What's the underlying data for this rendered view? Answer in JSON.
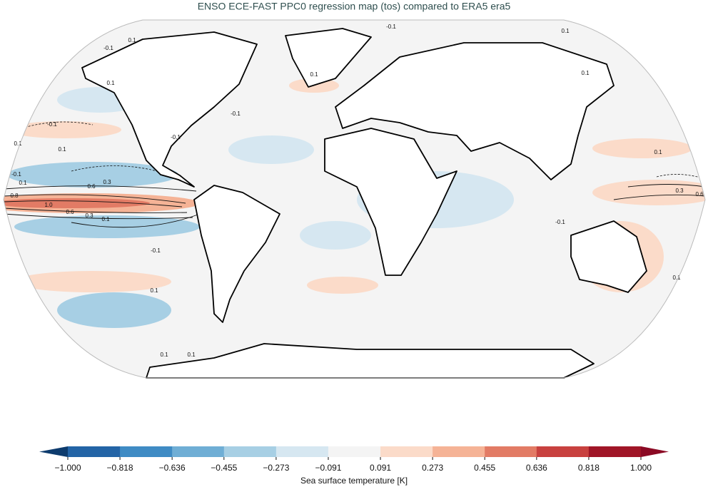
{
  "title": "ENSO ECE-FAST PPC0 regression map (tos) compared to ERA5 era5",
  "contour_labels": [
    "0.1",
    "-0.1",
    "0.1",
    "0.1",
    "-0.1",
    "0.1",
    "0.6",
    "0.3",
    "0.8",
    "1.0",
    "0.6",
    "0.3",
    "0.1",
    "-0.1",
    "0.1",
    "0.1",
    "0.1",
    "-0.1",
    "0.1",
    "-0.1",
    "0.1",
    "0.3",
    "0.6",
    "-0.1",
    "0.1",
    "-0.1",
    "0.1",
    "0.1",
    "-0.1",
    "0.1"
  ],
  "colorbar": {
    "label": "Sea surface temperature [K]",
    "ticks": [
      {
        "value": -1.0,
        "label": "−1.000"
      },
      {
        "value": -0.818,
        "label": "−0.818"
      },
      {
        "value": -0.636,
        "label": "−0.636"
      },
      {
        "value": -0.455,
        "label": "−0.455"
      },
      {
        "value": -0.273,
        "label": "−0.273"
      },
      {
        "value": -0.091,
        "label": "−0.091"
      },
      {
        "value": 0.091,
        "label": "0.091"
      },
      {
        "value": 0.273,
        "label": "0.273"
      },
      {
        "value": 0.455,
        "label": "0.455"
      },
      {
        "value": 0.636,
        "label": "0.636"
      },
      {
        "value": 0.818,
        "label": "0.818"
      },
      {
        "value": 1.0,
        "label": "1.000"
      }
    ],
    "colors": [
      "#2364a6",
      "#3f8bc4",
      "#6faed5",
      "#a7cfe4",
      "#d6e7f1",
      "#f4f4f4",
      "#fbdbc9",
      "#f5b396",
      "#e27b65",
      "#c8413f",
      "#a01527"
    ],
    "extend_colors": [
      "#0d3b6d",
      "#8b0a24"
    ]
  }
}
